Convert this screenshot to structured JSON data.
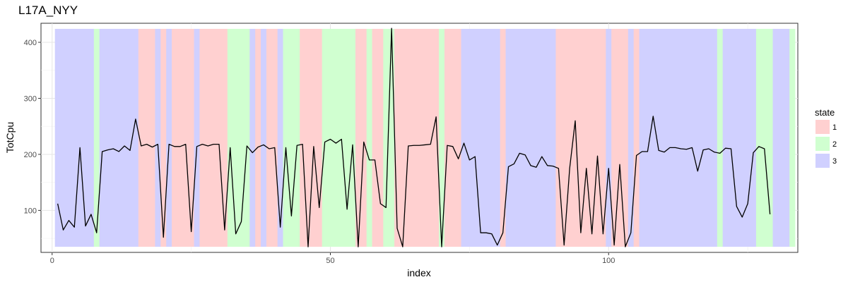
{
  "chart_data": {
    "type": "line",
    "title": "L17A_NYY",
    "xlabel": "index",
    "ylabel": "TotCpu",
    "xlim": [
      -2,
      134
    ],
    "ylim": [
      25,
      434
    ],
    "x_ticks": [
      0,
      50,
      100
    ],
    "y_ticks": [
      100,
      200,
      300,
      400
    ],
    "grid": true,
    "legend": {
      "title": "state",
      "placement": "right",
      "entries": [
        {
          "label": "1",
          "color": "#FFD0D0"
        },
        {
          "label": "2",
          "color": "#D0FFD0"
        },
        {
          "label": "3",
          "color": "#D0D0FF"
        }
      ]
    },
    "state_band_ymin": 35,
    "state_band_ymax": 424,
    "state_colors": {
      "1": "#FFD0D0",
      "2": "#D0FFD0",
      "3": "#D0D0FF"
    },
    "states": [
      3,
      3,
      3,
      3,
      3,
      3,
      3,
      2,
      3,
      3,
      3,
      3,
      3,
      3,
      3,
      1,
      1,
      1,
      3,
      1,
      3,
      1,
      1,
      1,
      1,
      3,
      1,
      1,
      1,
      1,
      1,
      2,
      2,
      2,
      2,
      3,
      1,
      3,
      1,
      1,
      3,
      2,
      2,
      2,
      1,
      1,
      1,
      1,
      2,
      2,
      2,
      2,
      2,
      2,
      1,
      1,
      2,
      1,
      1,
      2,
      2,
      1,
      1,
      1,
      1,
      1,
      1,
      1,
      1,
      2,
      1,
      1,
      1,
      3,
      3,
      3,
      3,
      3,
      3,
      3,
      1,
      3,
      3,
      3,
      3,
      3,
      3,
      3,
      3,
      3,
      1,
      1,
      1,
      1,
      1,
      1,
      1,
      1,
      1,
      3,
      1,
      1,
      1,
      3,
      1,
      3,
      3,
      3,
      3,
      3,
      3,
      3,
      3,
      3,
      3,
      3,
      3,
      3,
      3,
      2,
      3,
      3,
      3,
      3,
      3,
      3,
      2,
      2,
      2,
      3,
      3,
      3,
      2
    ],
    "series": [
      {
        "x_start": 1,
        "line_color": "#000000",
        "values": [
          112,
          65,
          82,
          70,
          212,
          72,
          93,
          60,
          205,
          208,
          210,
          205,
          215,
          207,
          263,
          215,
          218,
          213,
          218,
          52,
          218,
          214,
          214,
          218,
          62,
          214,
          218,
          215,
          218,
          218,
          65,
          212,
          58,
          80,
          215,
          203,
          213,
          217,
          210,
          212,
          70,
          212,
          90,
          216,
          218,
          35,
          214,
          105,
          222,
          227,
          220,
          227,
          102,
          217,
          35,
          222,
          190,
          190,
          112,
          105,
          425,
          68,
          35,
          215,
          216,
          216,
          217,
          218,
          267,
          35,
          216,
          214,
          192,
          220,
          190,
          196,
          60,
          60,
          58,
          38,
          60,
          178,
          183,
          202,
          199,
          180,
          177,
          196,
          180,
          179,
          175,
          38,
          175,
          260,
          60,
          175,
          58,
          197,
          58,
          175,
          38,
          182,
          35,
          60,
          198,
          205,
          205,
          268,
          207,
          204,
          212,
          212,
          210,
          209,
          212,
          170,
          208,
          210,
          204,
          202,
          211,
          210,
          107,
          88,
          112,
          203,
          214,
          210,
          93
        ]
      }
    ]
  }
}
